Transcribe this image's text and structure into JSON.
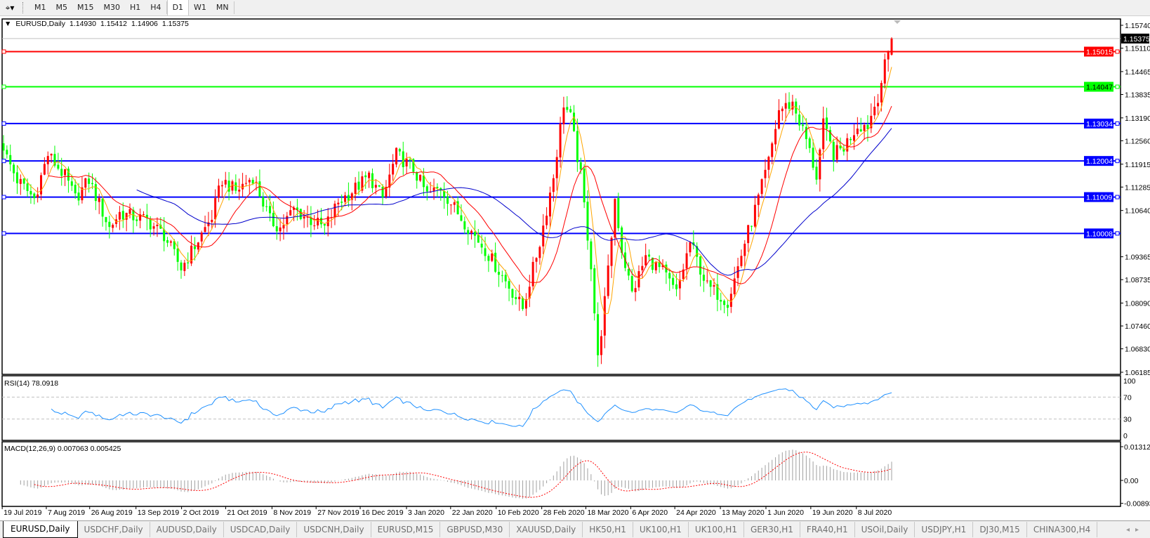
{
  "toolbar": {
    "tool_icon": "crosshair-dropdown-icon",
    "timeframes": [
      "M1",
      "M5",
      "M15",
      "M30",
      "H1",
      "H4",
      "D1",
      "W1",
      "MN"
    ],
    "active": "D1"
  },
  "chart": {
    "symbol": "EURUSD,Daily",
    "open": "1.14930",
    "high": "1.15412",
    "low": "1.14906",
    "close": "1.15375",
    "price_ticks": [
      "1.15740",
      "1.15110",
      "1.14465",
      "1.13835",
      "1.13190",
      "1.12560",
      "1.11915",
      "1.11285",
      "1.10640",
      "1.09365",
      "1.08735",
      "1.08090",
      "1.07460",
      "1.06830",
      "1.06185"
    ],
    "current_price": "1.15375",
    "levels": [
      {
        "value": "1.15015",
        "color": "#ff0000"
      },
      {
        "value": "1.14047",
        "color": "#00ff00"
      },
      {
        "value": "1.13034",
        "color": "#0000ff"
      },
      {
        "value": "1.12004",
        "color": "#0000ff"
      },
      {
        "value": "1.11009",
        "color": "#0000ff"
      },
      {
        "value": "1.10008",
        "color": "#0000ff"
      }
    ],
    "bull_color": "#ff0000",
    "bear_color": "#00ff00",
    "ma_colors": [
      "#ffa500",
      "#ff0000",
      "#0000cc"
    ],
    "close_path": [
      [
        0,
        1.1229
      ],
      [
        4,
        1.1148
      ],
      [
        9,
        1.1097
      ],
      [
        13,
        1.1218
      ],
      [
        18,
        1.1158
      ],
      [
        21,
        1.1097
      ],
      [
        25,
        1.1148
      ],
      [
        31,
        1.1016
      ],
      [
        34,
        1.1057
      ],
      [
        38,
        1.1047
      ],
      [
        42,
        1.1037
      ],
      [
        47,
        1.0996
      ],
      [
        52,
        1.0905
      ],
      [
        56,
        1.0966
      ],
      [
        61,
        1.1047
      ],
      [
        64,
        1.1148
      ],
      [
        68,
        1.1117
      ],
      [
        73,
        1.1158
      ],
      [
        78,
        1.1037
      ],
      [
        81,
        1.1016
      ],
      [
        85,
        1.1067
      ],
      [
        90,
        1.1037
      ],
      [
        94,
        1.1016
      ],
      [
        98,
        1.1087
      ],
      [
        102,
        1.1117
      ],
      [
        107,
        1.1158
      ],
      [
        111,
        1.1097
      ],
      [
        115,
        1.1218
      ],
      [
        120,
        1.1178
      ],
      [
        124,
        1.1107
      ],
      [
        128,
        1.1127
      ],
      [
        133,
        1.1057
      ],
      [
        137,
        1.1006
      ],
      [
        141,
        1.0956
      ],
      [
        148,
        1.0855
      ],
      [
        152,
        1.0794
      ],
      [
        157,
        1.0976
      ],
      [
        161,
        1.1158
      ],
      [
        164,
        1.136
      ],
      [
        166,
        1.1319
      ],
      [
        169,
        1.1158
      ],
      [
        172,
        1.0915
      ],
      [
        174,
        1.0653
      ],
      [
        177,
        1.0895
      ],
      [
        179,
        1.1097
      ],
      [
        181,
        1.0956
      ],
      [
        184,
        1.0835
      ],
      [
        188,
        1.0936
      ],
      [
        193,
        1.0895
      ],
      [
        197,
        1.0835
      ],
      [
        201,
        1.0976
      ],
      [
        206,
        1.0855
      ],
      [
        209,
        1.0835
      ],
      [
        212,
        1.0814
      ],
      [
        214,
        1.0875
      ],
      [
        217,
        1.0976
      ],
      [
        221,
        1.1097
      ],
      [
        224,
        1.1198
      ],
      [
        227,
        1.134
      ],
      [
        231,
        1.136
      ],
      [
        235,
        1.1259
      ],
      [
        238,
        1.1158
      ],
      [
        240,
        1.1299
      ],
      [
        243,
        1.1218
      ],
      [
        246,
        1.1239
      ],
      [
        250,
        1.1299
      ],
      [
        253,
        1.1299
      ],
      [
        256,
        1.138
      ],
      [
        258,
        1.1461
      ],
      [
        260,
        1.15375
      ]
    ]
  },
  "rsi": {
    "label": "RSI(14) 78.0918",
    "ticks": [
      "100",
      "70",
      "30",
      "0"
    ],
    "color": "#1e90ff"
  },
  "macd": {
    "label": "MACD(12,26,9) 0.007063 0.005425",
    "ticks": [
      "0.013121",
      "0.00",
      "-0.00893"
    ],
    "signal_color": "#ff0000",
    "hist_color": "#a0a0a0"
  },
  "dates": [
    "19 Jul 2019",
    "7 Aug 2019",
    "26 Aug 2019",
    "13 Sep 2019",
    "2 Oct 2019",
    "21 Oct 2019",
    "8 Nov 2019",
    "27 Nov 2019",
    "16 Dec 2019",
    "3 Jan 2020",
    "22 Jan 2020",
    "10 Feb 2020",
    "28 Feb 2020",
    "18 Mar 2020",
    "6 Apr 2020",
    "24 Apr 2020",
    "13 May 2020",
    "1 Jun 2020",
    "19 Jun 2020",
    "8 Jul 2020"
  ],
  "tabs": [
    "EURUSD,Daily",
    "USDCHF,Daily",
    "AUDUSD,Daily",
    "USDCAD,Daily",
    "USDCNH,Daily",
    "EURUSD,M15",
    "GBPUSD,M30",
    "XAUUSD,Daily",
    "HK50,H1",
    "UK100,H1",
    "UK100,H1",
    "GER30,H1",
    "FRA40,H1",
    "USOil,Daily",
    "USDJPY,H1",
    "DJ30,M15",
    "CHINA300,H4"
  ],
  "active_tab": "EURUSD,Daily"
}
